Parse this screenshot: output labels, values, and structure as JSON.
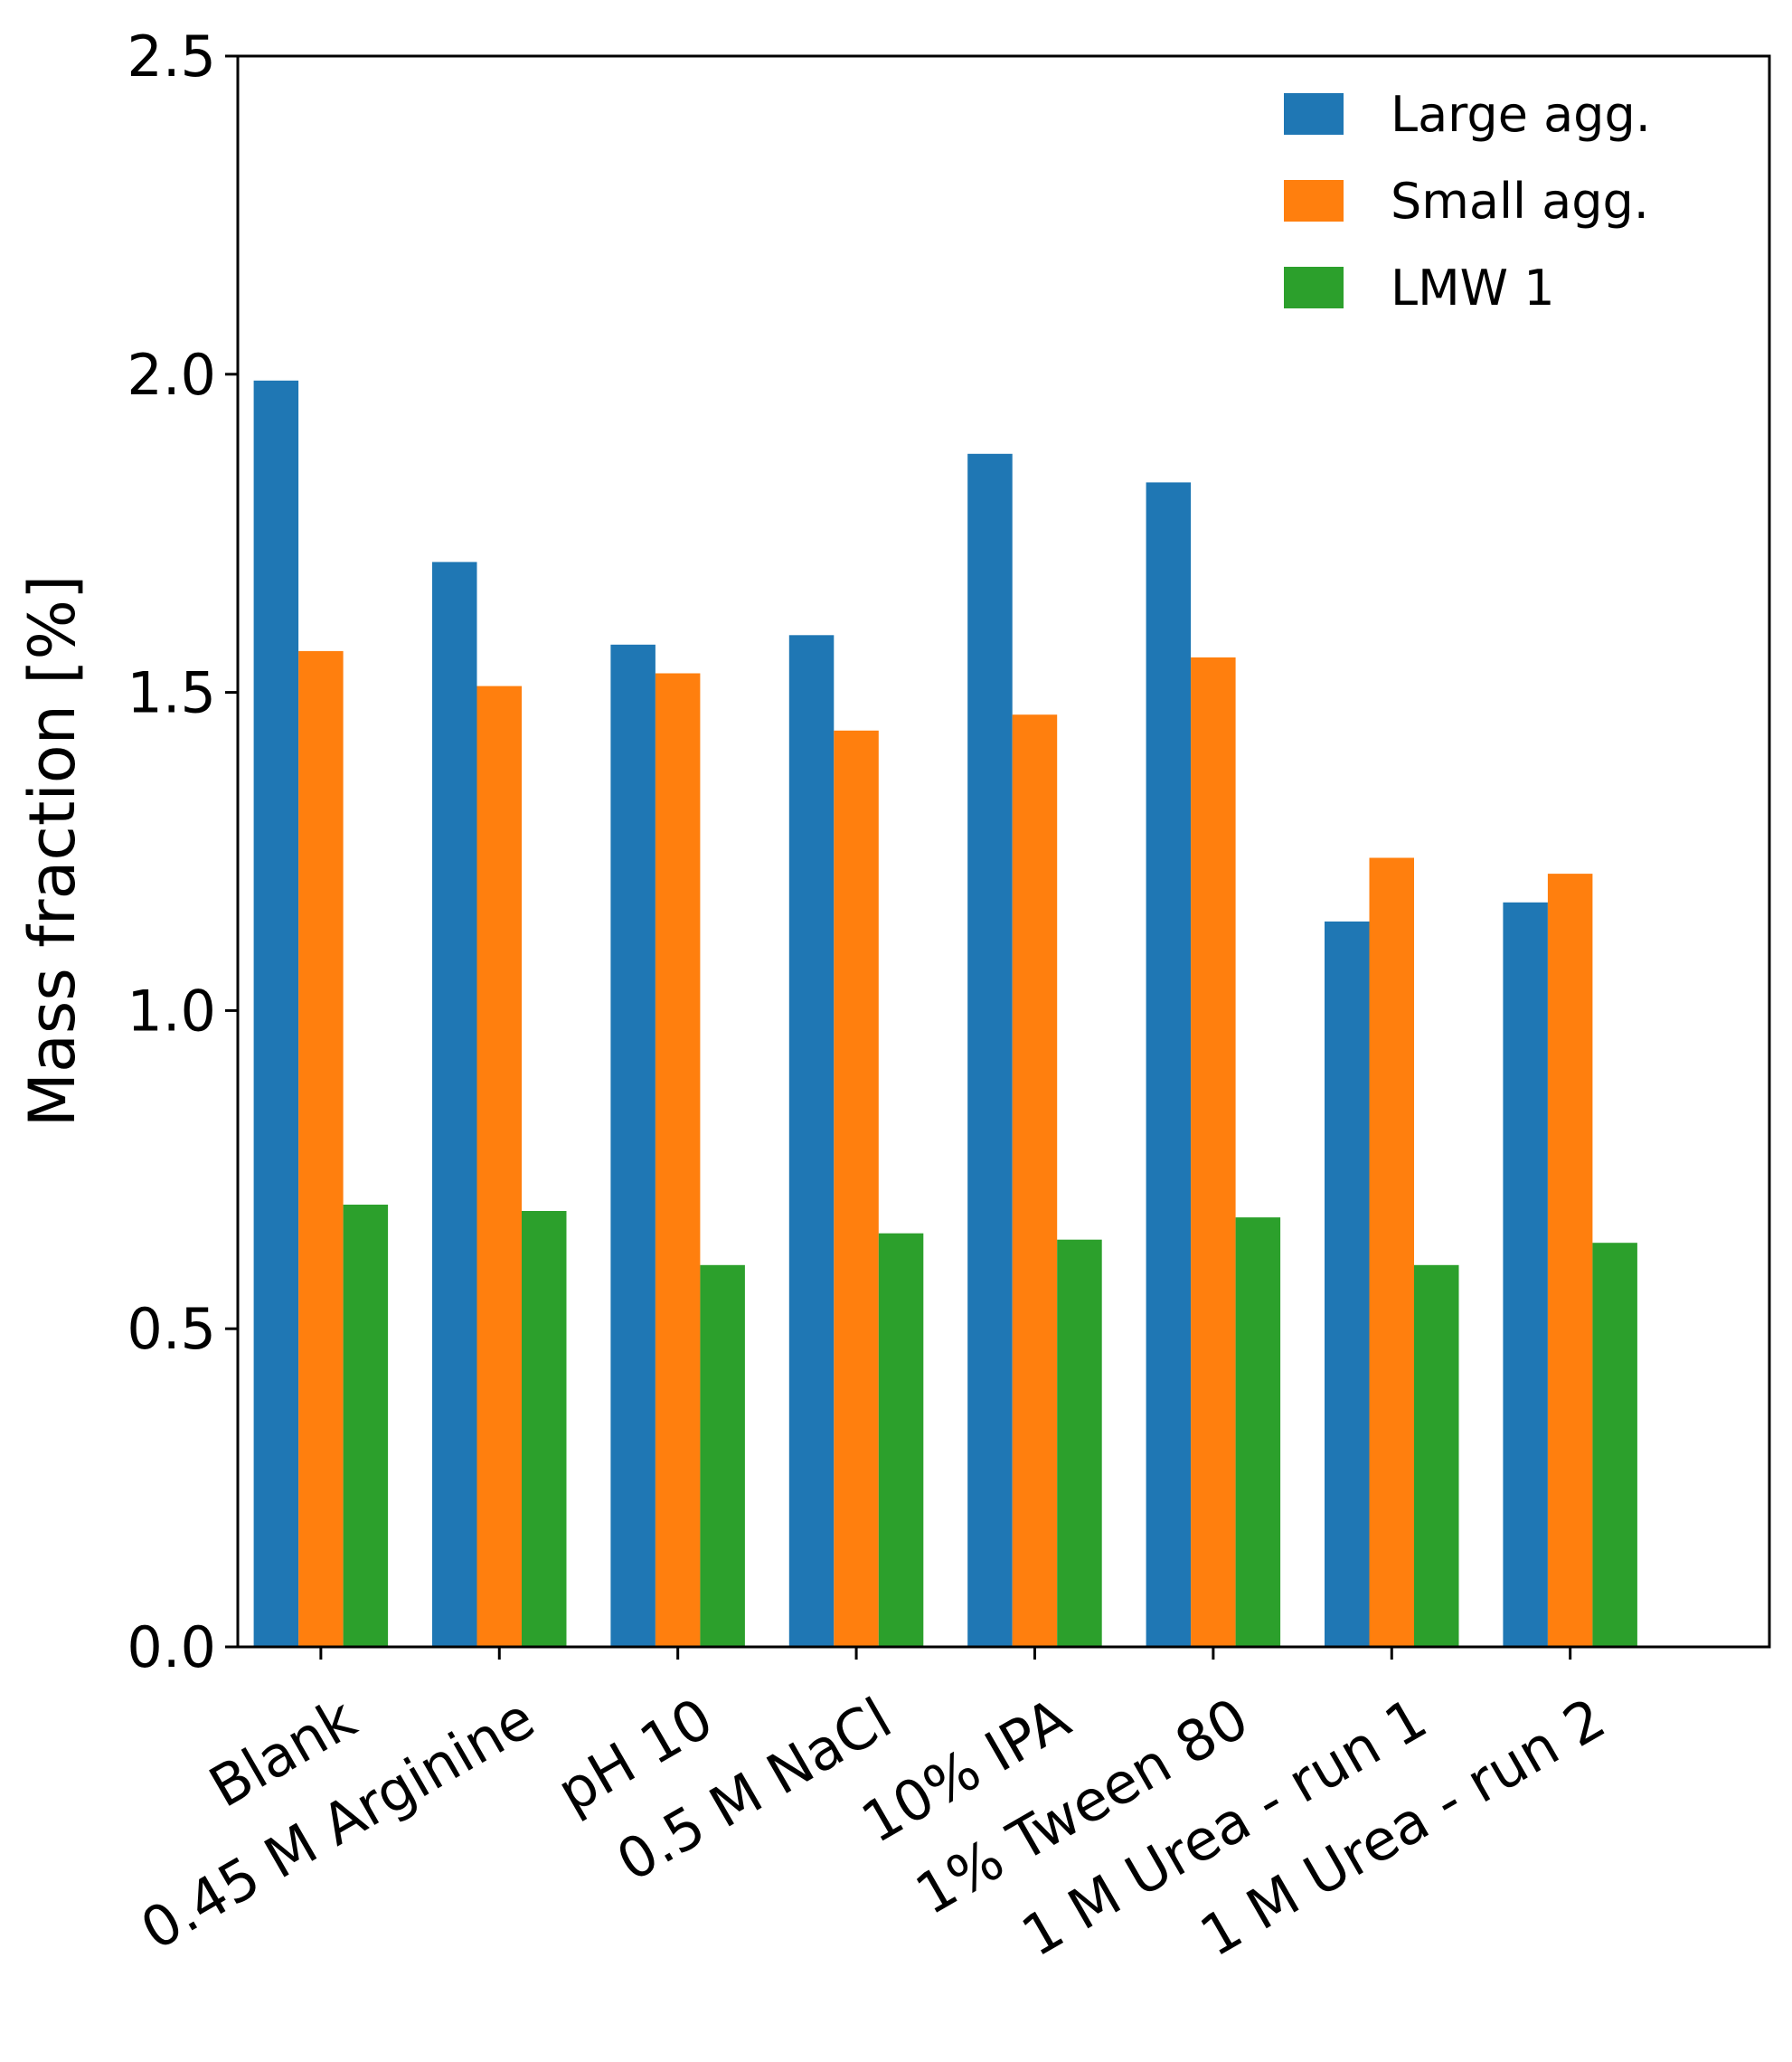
{
  "chart_data": {
    "type": "bar",
    "title": "",
    "xlabel": "",
    "ylabel": "Mass fraction [%]",
    "ylim": [
      0,
      2.5
    ],
    "yticks": [
      "0.0",
      "0.5",
      "1.0",
      "1.5",
      "2.0",
      "2.5"
    ],
    "grid": false,
    "legend_position": "top-right",
    "categories": [
      "Blank",
      "0.45 M Arginine",
      "pH 10",
      "0.5 M NaCl",
      "10% IPA",
      "1% Tween 80",
      "1 M Urea - run 1",
      "1 M Urea - run 2"
    ],
    "series": [
      {
        "name": "Large agg.",
        "color": "#1f77b4",
        "values": [
          1.99,
          1.705,
          1.575,
          1.59,
          1.875,
          1.83,
          1.14,
          1.17
        ]
      },
      {
        "name": "Small agg.",
        "color": "#ff7f0e",
        "values": [
          1.565,
          1.51,
          1.53,
          1.44,
          1.465,
          1.555,
          1.24,
          1.215
        ]
      },
      {
        "name": "LMW 1",
        "color": "#2ca02c",
        "values": [
          0.695,
          0.685,
          0.6,
          0.65,
          0.64,
          0.675,
          0.6,
          0.635
        ]
      }
    ]
  }
}
